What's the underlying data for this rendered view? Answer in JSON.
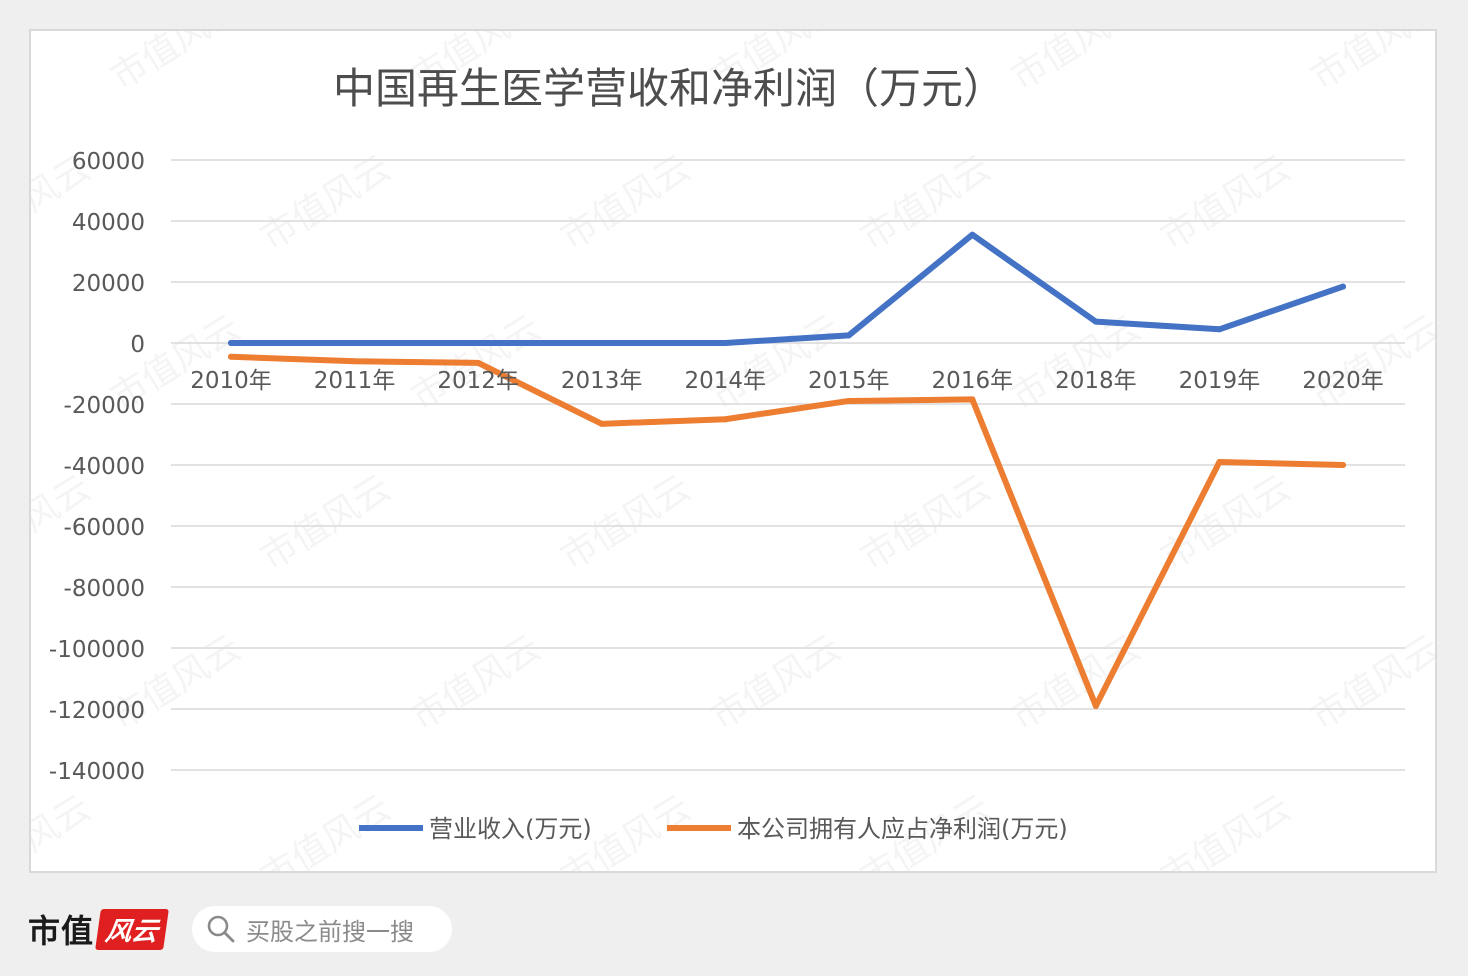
{
  "chart_data": {
    "type": "line",
    "title": "中国再生医学营收和净利润（万元）",
    "categories": [
      "2010年",
      "2011年",
      "2012年",
      "2013年",
      "2014年",
      "2015年",
      "2016年",
      "2018年",
      "2019年",
      "2020年"
    ],
    "series": [
      {
        "name": "营业收入(万元)",
        "color": "#4472c4",
        "values": [
          0,
          0,
          0,
          0,
          0,
          2500,
          35500,
          7000,
          4500,
          18500
        ]
      },
      {
        "name": "本公司拥有人应占净利润(万元)",
        "color": "#ed7d31",
        "values": [
          -4500,
          -6000,
          -6500,
          -26500,
          -25000,
          -19000,
          -18500,
          -119000,
          -39000,
          -40000
        ]
      }
    ],
    "ylim": [
      -140000,
      60000
    ],
    "yticks": [
      "60000",
      "40000",
      "20000",
      "0",
      "-20000",
      "-40000",
      "-60000",
      "-80000",
      "-100000",
      "-120000",
      "-140000"
    ],
    "ytick_values": [
      60000,
      40000,
      20000,
      0,
      -20000,
      -40000,
      -60000,
      -80000,
      -100000,
      -120000,
      -140000
    ],
    "grid": true,
    "legend_position": "bottom"
  },
  "footer": {
    "brand": "市值",
    "brand_badge": "风云",
    "search_placeholder": "买股之前搜一搜"
  },
  "watermark": "市值风云"
}
